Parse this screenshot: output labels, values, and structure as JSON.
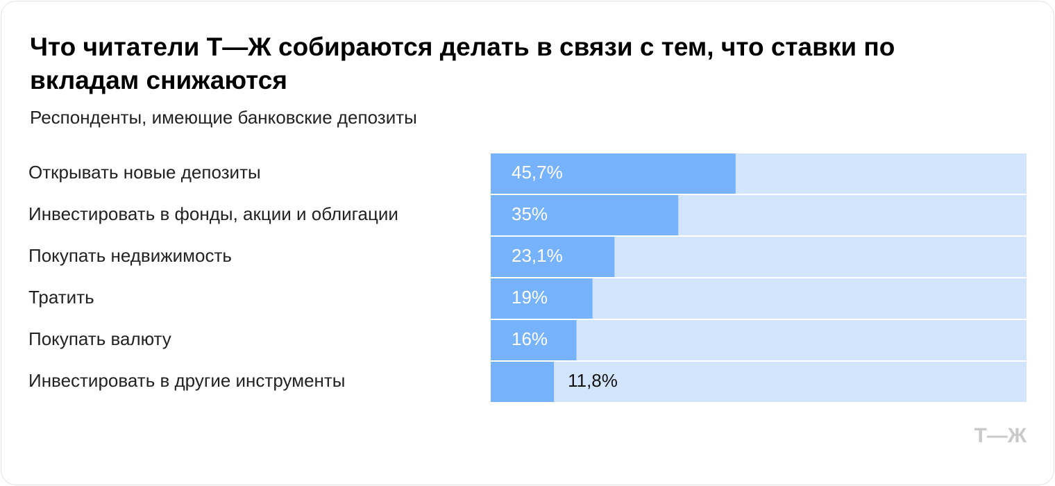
{
  "chart_data": {
    "type": "bar",
    "orientation": "horizontal",
    "title": "Что читатели Т—Ж собираются делать в связи с тем, что ставки по вкладам снижаются",
    "subtitle": "Респонденты, имеющие банковские депозиты",
    "categories": [
      "Открывать новые депозиты",
      "Инвестировать в фонды, акции и облигации",
      "Покупать недвижимость",
      "Тратить",
      "Покупать валюту",
      "Инвестировать в другие инструменты"
    ],
    "values": [
      45.7,
      35,
      23.1,
      19,
      16,
      11.8
    ],
    "value_labels": [
      "45,7%",
      "35%",
      "23,1%",
      "19%",
      "16%",
      "11,8%"
    ],
    "color": "#76b3fc",
    "track_color": "#d3e5fc",
    "xlim": [
      0,
      100
    ],
    "logo": "Т—Ж"
  }
}
